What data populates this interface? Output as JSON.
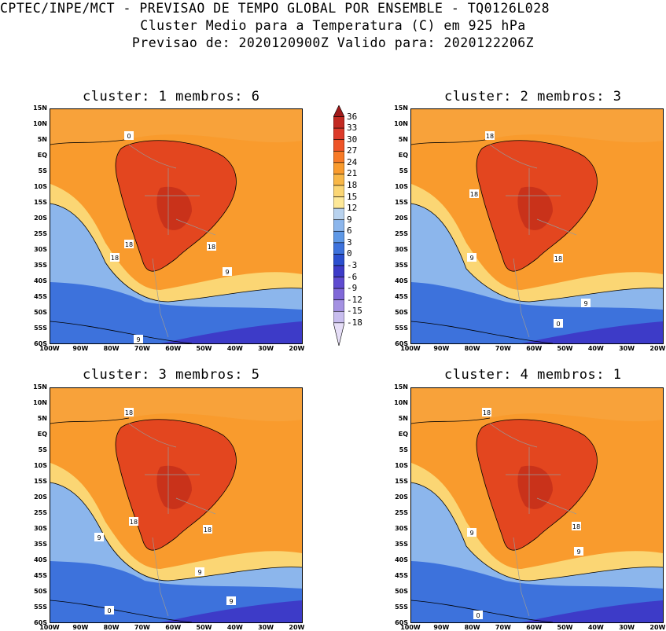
{
  "title": {
    "line1": "CPTEC/INPE/MCT - PREVISAO DE TEMPO GLOBAL POR ENSEMBLE - TQ0126L028",
    "line2": "Cluster Medio para a Temperatura (C) em 925 hPa",
    "line3": "Previsao de: 2020120900Z   Valido para: 2020122206Z"
  },
  "panels": [
    {
      "title": "cluster: 1  membros: 6",
      "contour_labels": [
        "18",
        "18",
        "18",
        "18",
        "9",
        "9",
        "0"
      ]
    },
    {
      "title": "cluster: 2  membros: 3",
      "contour_labels": [
        "18",
        "18",
        "18",
        "9",
        "9",
        "0"
      ]
    },
    {
      "title": "cluster: 3  membros: 5",
      "contour_labels": [
        "18",
        "18",
        "18",
        "9",
        "9",
        "9",
        "0"
      ]
    },
    {
      "title": "cluster: 4  membros: 1",
      "contour_labels": [
        "18",
        "18",
        "9",
        "9",
        "0"
      ]
    }
  ],
  "axes": {
    "lat_labels": [
      "15N",
      "10N",
      "5N",
      "EQ",
      "5S",
      "10S",
      "15S",
      "20S",
      "25S",
      "30S",
      "35S",
      "40S",
      "45S",
      "50S",
      "55S",
      "60S"
    ],
    "lon_labels": [
      "100W",
      "90W",
      "80W",
      "70W",
      "60W",
      "50W",
      "40W",
      "30W",
      "20W"
    ]
  },
  "colorbar": {
    "labels": [
      "36",
      "33",
      "30",
      "27",
      "24",
      "21",
      "18",
      "15",
      "12",
      "9",
      "6",
      "3",
      "0",
      "-3",
      "-6",
      "-9",
      "-12",
      "-15",
      "-18"
    ],
    "colors": [
      "#a01a1a",
      "#c22a22",
      "#dc3b2a",
      "#ee5428",
      "#f77a26",
      "#f99b2d",
      "#f8b747",
      "#fbd674",
      "#fde898",
      "#b8d2ee",
      "#8cb6ec",
      "#5e98e6",
      "#3d72dc",
      "#2b4fcf",
      "#3d3bc8",
      "#5f4bd0",
      "#8068d8",
      "#a491e2",
      "#c8bdee",
      "#e6def7"
    ]
  },
  "fill_colors": {
    "land_hot": "#e3461f",
    "land_very_hot": "#c9321a",
    "warm": "#f99b2d",
    "mild": "#fbd674",
    "cool": "#8cb6ec",
    "cold": "#3d72dc",
    "very_cold": "#3d3bc8",
    "ocean_north": "#f8a23a"
  }
}
